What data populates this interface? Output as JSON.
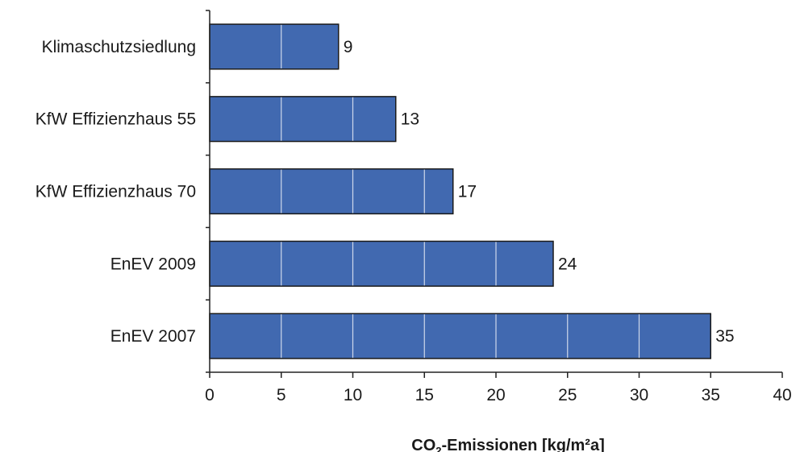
{
  "chart_data": {
    "type": "bar",
    "orientation": "horizontal",
    "categories": [
      "Klimaschutzsiedlung",
      "KfW Effizienzhaus 55",
      "KfW Effizienzhaus 70",
      "EnEV 2009",
      "EnEV 2007"
    ],
    "values": [
      9,
      13,
      17,
      24,
      35
    ],
    "xlabel": {
      "main": "CO",
      "sub": "2",
      "rest": "-Emissionen [kg/m²a]"
    },
    "ylabel": "",
    "xlim": [
      0,
      40
    ],
    "xticks": [
      0,
      5,
      10,
      15,
      20,
      25,
      30,
      35,
      40
    ],
    "bar_color": "#4169b0",
    "grid": "white vertical lines inside bars"
  }
}
